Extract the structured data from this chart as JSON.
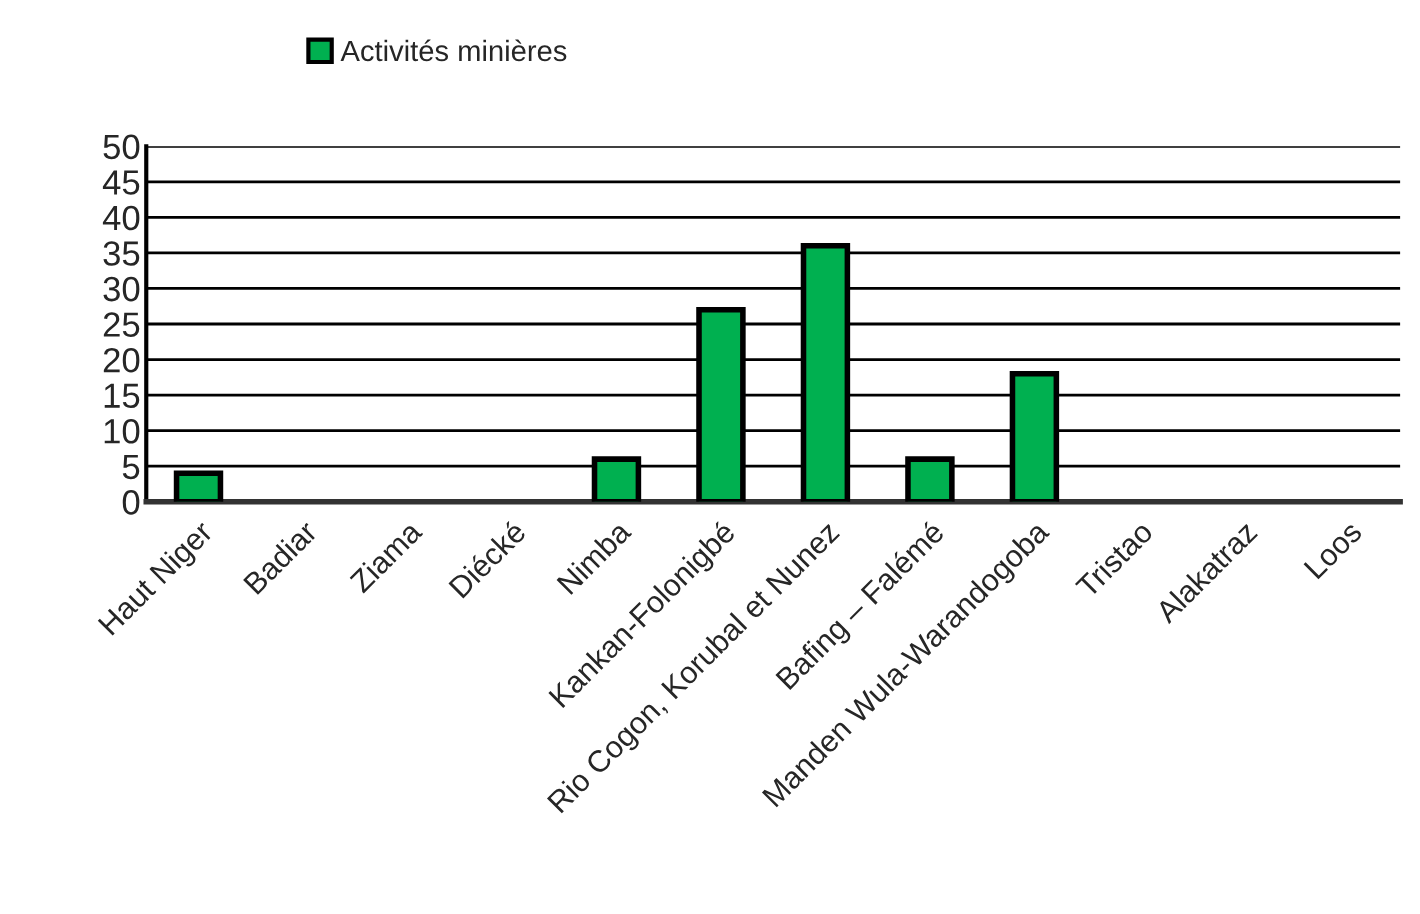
{
  "chart_data": {
    "type": "bar",
    "categories": [
      "Haut Niger",
      "Badiar",
      "Ziama",
      "Diécké",
      "Nimba",
      "Kankan-Folonigbé",
      "Rio Cogon, Korubal et Nunez",
      "Bafing – Falémé",
      "Manden Wula-Warandogoba",
      "Tristao",
      "Alakatraz",
      "Loos"
    ],
    "series": [
      {
        "name": "Activités minières",
        "color": "#00b050",
        "values": [
          4,
          0,
          0,
          0,
          6,
          27,
          36,
          6,
          18,
          0,
          0,
          0
        ]
      }
    ],
    "ylim": [
      0,
      50
    ],
    "yticks": [
      0,
      5,
      10,
      15,
      20,
      25,
      30,
      35,
      40,
      45,
      50
    ],
    "grid": "y",
    "legend": "top left"
  }
}
